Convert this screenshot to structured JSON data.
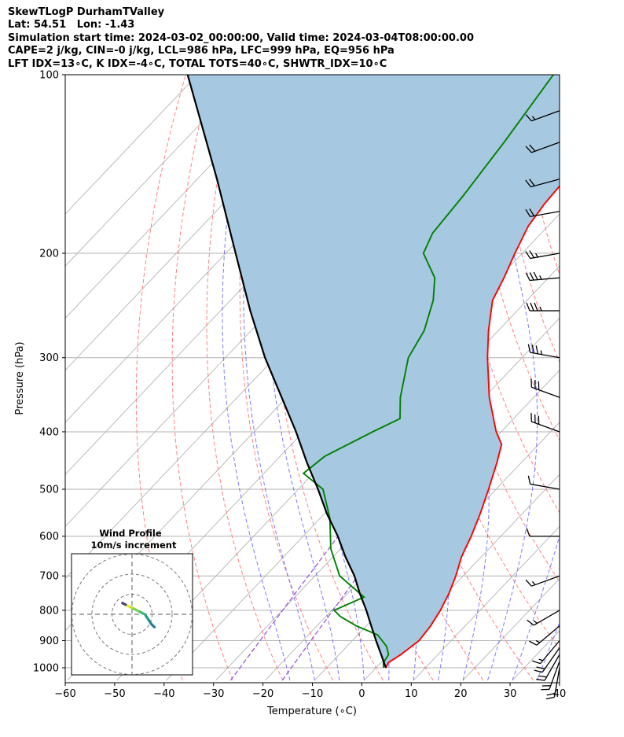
{
  "header": {
    "line1": "SkewTLogP DurhamTValley",
    "line2": "Lat: 54.51   Lon: -1.43",
    "line3": "Simulation start time: 2024-03-02_00:00:00, Valid time: 2024-03-04T08:00:00.00",
    "line4": "CAPE=2 j/kg, CIN=-0 j/kg, LCL=986 hPa, LFC=999 hPa, EQ=956 hPa",
    "line5": "LFT IDX=13∘C, K IDX=-4∘C, TOTAL TOTS=40∘C, SHWTR_IDX=10∘C"
  },
  "chart_data": {
    "type": "skew-t log-p",
    "xlabel": "Temperature (∘C)",
    "ylabel": "Pressure (hPa)",
    "xlim": [
      -60,
      40
    ],
    "ylim_hpa": [
      1050,
      100
    ],
    "x_ticks": [
      -60,
      -50,
      -40,
      -30,
      -20,
      -10,
      0,
      10,
      20,
      30,
      40
    ],
    "x_tick_labels": [
      "−60",
      "−50",
      "−40",
      "−30",
      "−20",
      "−10",
      "0",
      "10",
      "20",
      "30",
      "40"
    ],
    "y_ticks": [
      1000,
      900,
      800,
      700,
      600,
      500,
      400,
      300,
      200,
      100
    ],
    "y_tick_labels": [
      "1000",
      "900",
      "800",
      "700",
      "600",
      "500",
      "400",
      "300",
      "200",
      "100"
    ],
    "grid": true,
    "colors": {
      "temperature": "#ff0000",
      "dewpoint": "#008000",
      "parcel": "#000000",
      "shade": "#a6c8e0",
      "dry_adiabats": "#ff6b6b",
      "moist_adiabats": "#5a5aff",
      "mixing_ratio": "#9b59d9",
      "isotherms": "#b3b3b3"
    },
    "temperature_profile": [
      {
        "p": 1000,
        "t": 2.0
      },
      {
        "p": 980,
        "t": 1.5
      },
      {
        "p": 950,
        "t": 2.5
      },
      {
        "p": 900,
        "t": 3.5
      },
      {
        "p": 850,
        "t": 3.0
      },
      {
        "p": 800,
        "t": 2.0
      },
      {
        "p": 750,
        "t": 0.5
      },
      {
        "p": 700,
        "t": -1.5
      },
      {
        "p": 650,
        "t": -4.0
      },
      {
        "p": 600,
        "t": -6.0
      },
      {
        "p": 550,
        "t": -8.5
      },
      {
        "p": 500,
        "t": -11.5
      },
      {
        "p": 450,
        "t": -15.0
      },
      {
        "p": 420,
        "t": -17.5
      },
      {
        "p": 400,
        "t": -21.0
      },
      {
        "p": 350,
        "t": -29.0
      },
      {
        "p": 300,
        "t": -37.0
      },
      {
        "p": 270,
        "t": -42.0
      },
      {
        "p": 240,
        "t": -47.0
      },
      {
        "p": 220,
        "t": -49.0
      },
      {
        "p": 200,
        "t": -51.5
      },
      {
        "p": 180,
        "t": -54.0
      },
      {
        "p": 165,
        "t": -55.0
      },
      {
        "p": 150,
        "t": -55.5
      },
      {
        "p": 130,
        "t": -56.5
      },
      {
        "p": 115,
        "t": -57.5
      },
      {
        "p": 100,
        "t": -58.5
      }
    ],
    "dewpoint_profile": [
      {
        "p": 1000,
        "t": 1.5
      },
      {
        "p": 980,
        "t": 0.5
      },
      {
        "p": 950,
        "t": 0.0
      },
      {
        "p": 920,
        "t": -2.0
      },
      {
        "p": 880,
        "t": -6.0
      },
      {
        "p": 850,
        "t": -12.0
      },
      {
        "p": 820,
        "t": -17.0
      },
      {
        "p": 800,
        "t": -19.5
      },
      {
        "p": 760,
        "t": -16.0
      },
      {
        "p": 700,
        "t": -25.0
      },
      {
        "p": 630,
        "t": -32.0
      },
      {
        "p": 560,
        "t": -38.0
      },
      {
        "p": 500,
        "t": -45.0
      },
      {
        "p": 470,
        "t": -52.0
      },
      {
        "p": 440,
        "t": -51.0
      },
      {
        "p": 400,
        "t": -46.0
      },
      {
        "p": 380,
        "t": -43.0
      },
      {
        "p": 350,
        "t": -47.0
      },
      {
        "p": 300,
        "t": -53.0
      },
      {
        "p": 270,
        "t": -55.0
      },
      {
        "p": 240,
        "t": -59.0
      },
      {
        "p": 220,
        "t": -63.0
      },
      {
        "p": 200,
        "t": -70.0
      },
      {
        "p": 185,
        "t": -72.0
      },
      {
        "p": 160,
        "t": -73.0
      },
      {
        "p": 130,
        "t": -75.0
      },
      {
        "p": 100,
        "t": -78.0
      }
    ],
    "parcel_profile": [
      {
        "p": 1000,
        "t": 2.0
      },
      {
        "p": 950,
        "t": -1.5
      },
      {
        "p": 900,
        "t": -5.2
      },
      {
        "p": 850,
        "t": -9.0
      },
      {
        "p": 800,
        "t": -13.0
      },
      {
        "p": 750,
        "t": -17.5
      },
      {
        "p": 700,
        "t": -22.0
      },
      {
        "p": 650,
        "t": -27.5
      },
      {
        "p": 600,
        "t": -33.0
      },
      {
        "p": 550,
        "t": -39.5
      },
      {
        "p": 500,
        "t": -46.0
      },
      {
        "p": 450,
        "t": -53.5
      },
      {
        "p": 400,
        "t": -61.5
      },
      {
        "p": 350,
        "t": -71.0
      },
      {
        "p": 300,
        "t": -82.0
      },
      {
        "p": 250,
        "t": -94.0
      },
      {
        "p": 200,
        "t": -108.0
      },
      {
        "p": 150,
        "t": -126.0
      },
      {
        "p": 100,
        "t": -152.0
      }
    ],
    "wind_barbs": [
      {
        "p": 1000,
        "speed_kt": 20,
        "dir": 190
      },
      {
        "p": 975,
        "speed_kt": 20,
        "dir": 200
      },
      {
        "p": 950,
        "speed_kt": 20,
        "dir": 210
      },
      {
        "p": 925,
        "speed_kt": 20,
        "dir": 215
      },
      {
        "p": 900,
        "speed_kt": 15,
        "dir": 220
      },
      {
        "p": 850,
        "speed_kt": 15,
        "dir": 230
      },
      {
        "p": 800,
        "speed_kt": 15,
        "dir": 240
      },
      {
        "p": 700,
        "speed_kt": 15,
        "dir": 250
      },
      {
        "p": 600,
        "speed_kt": 10,
        "dir": 270
      },
      {
        "p": 500,
        "speed_kt": 10,
        "dir": 280
      },
      {
        "p": 400,
        "speed_kt": 30,
        "dir": 290
      },
      {
        "p": 350,
        "speed_kt": 30,
        "dir": 290
      },
      {
        "p": 300,
        "speed_kt": 35,
        "dir": 280
      },
      {
        "p": 250,
        "speed_kt": 35,
        "dir": 270
      },
      {
        "p": 220,
        "speed_kt": 35,
        "dir": 265
      },
      {
        "p": 200,
        "speed_kt": 25,
        "dir": 260
      },
      {
        "p": 170,
        "speed_kt": 20,
        "dir": 260
      },
      {
        "p": 150,
        "speed_kt": 20,
        "dir": 255
      },
      {
        "p": 130,
        "speed_kt": 20,
        "dir": 250
      },
      {
        "p": 115,
        "speed_kt": 15,
        "dir": 250
      }
    ],
    "hodograph": {
      "title_line1": "Wind Profile",
      "title_line2": "10m/s increment",
      "rings_ms": [
        10,
        20,
        30
      ],
      "trace_uv": [
        {
          "u": 7,
          "v": -4
        },
        {
          "u": 6,
          "v": -3
        },
        {
          "u": 5,
          "v": -1.5
        },
        {
          "u": 4,
          "v": 0
        },
        {
          "u": 2,
          "v": 1
        },
        {
          "u": 0,
          "v": 2
        },
        {
          "u": -1,
          "v": 2.5
        },
        {
          "u": -2,
          "v": 3
        },
        {
          "u": -3,
          "v": 3.5
        }
      ]
    }
  }
}
